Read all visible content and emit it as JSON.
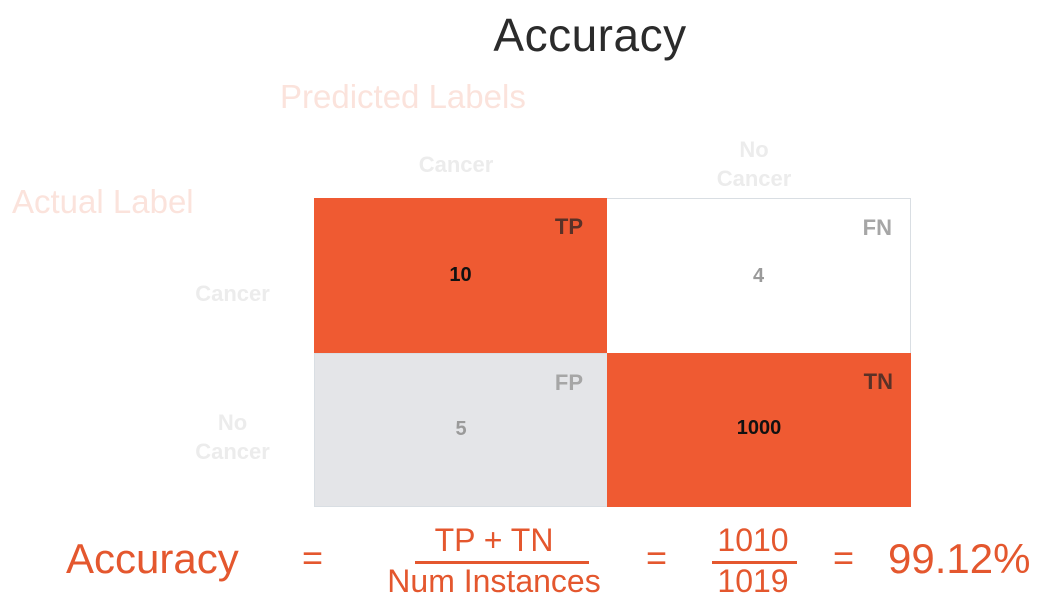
{
  "title": "Accuracy",
  "axis_labels": {
    "predicted": "Predicted Labels",
    "actual": "Actual Label"
  },
  "columns": [
    "Cancer",
    "No\nCancer"
  ],
  "rows": [
    "Cancer",
    "No\nCancer"
  ],
  "matrix": {
    "tp": {
      "tag": "TP",
      "value": "10"
    },
    "fn": {
      "tag": "FN",
      "value": "4"
    },
    "fp": {
      "tag": "FP",
      "value": "5"
    },
    "tn": {
      "tag": "TN",
      "value": "1000"
    }
  },
  "formula": {
    "label": "Accuracy",
    "eq": "=",
    "numerator": "TP + TN",
    "denominator": "Num Instances",
    "value_numerator": "1010",
    "value_denominator": "1019",
    "result": "99.12%"
  },
  "colors": {
    "accent": "#ef5a32",
    "grey_cell": "#e4e5e8",
    "formula_text": "#e4572e"
  }
}
